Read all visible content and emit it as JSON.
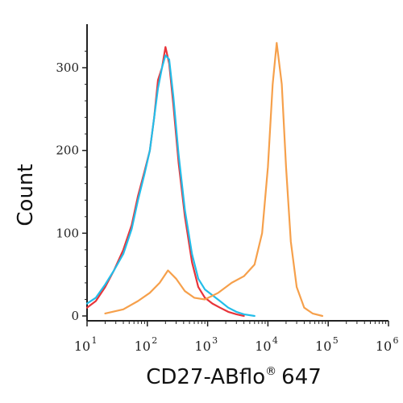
{
  "chart_data": {
    "type": "line",
    "xlabel": "CD27-ABflo",
    "xlabel_suffix": "647",
    "xlabel_superscript": "®",
    "ylabel": "Count",
    "x_scale": "log",
    "xlim": [
      10,
      1000000
    ],
    "ylim": [
      0,
      330
    ],
    "yticks": [
      {
        "value": 0,
        "label": "0"
      },
      {
        "value": 100,
        "label": "100"
      },
      {
        "value": 200,
        "label": "200"
      },
      {
        "value": 300,
        "label": "300"
      }
    ],
    "xticks": [
      {
        "value": 10,
        "base": "10",
        "exp": "1"
      },
      {
        "value": 100,
        "base": "10",
        "exp": "2"
      },
      {
        "value": 1000,
        "base": "10",
        "exp": "3"
      },
      {
        "value": 10000,
        "base": "10",
        "exp": "4"
      },
      {
        "value": 100000,
        "base": "10",
        "exp": "5"
      },
      {
        "value": 1000000,
        "base": "10",
        "exp": "6"
      }
    ],
    "grid": false,
    "series": [
      {
        "color": "#e8343a",
        "points": [
          [
            10,
            10
          ],
          [
            14,
            18
          ],
          [
            20,
            35
          ],
          [
            28,
            55
          ],
          [
            40,
            80
          ],
          [
            55,
            110
          ],
          [
            70,
            145
          ],
          [
            90,
            175
          ],
          [
            110,
            200
          ],
          [
            130,
            240
          ],
          [
            150,
            285
          ],
          [
            175,
            300
          ],
          [
            200,
            325
          ],
          [
            230,
            305
          ],
          [
            270,
            255
          ],
          [
            330,
            185
          ],
          [
            420,
            120
          ],
          [
            550,
            65
          ],
          [
            700,
            35
          ],
          [
            900,
            22
          ],
          [
            1200,
            15
          ],
          [
            1600,
            10
          ],
          [
            2200,
            5
          ],
          [
            3000,
            2
          ],
          [
            4000,
            0
          ]
        ]
      },
      {
        "color": "#23bde9",
        "points": [
          [
            10,
            15
          ],
          [
            14,
            22
          ],
          [
            20,
            38
          ],
          [
            28,
            55
          ],
          [
            40,
            75
          ],
          [
            55,
            105
          ],
          [
            70,
            140
          ],
          [
            90,
            172
          ],
          [
            110,
            200
          ],
          [
            130,
            240
          ],
          [
            150,
            275
          ],
          [
            175,
            300
          ],
          [
            200,
            315
          ],
          [
            230,
            310
          ],
          [
            270,
            265
          ],
          [
            330,
            195
          ],
          [
            420,
            128
          ],
          [
            550,
            75
          ],
          [
            700,
            45
          ],
          [
            900,
            32
          ],
          [
            1200,
            25
          ],
          [
            1600,
            18
          ],
          [
            2200,
            10
          ],
          [
            3000,
            5
          ],
          [
            4000,
            2
          ],
          [
            6000,
            0
          ]
        ]
      },
      {
        "color": "#f6a04b",
        "points": [
          [
            20,
            3
          ],
          [
            40,
            8
          ],
          [
            70,
            18
          ],
          [
            110,
            28
          ],
          [
            160,
            40
          ],
          [
            220,
            55
          ],
          [
            300,
            45
          ],
          [
            420,
            30
          ],
          [
            600,
            22
          ],
          [
            900,
            20
          ],
          [
            1500,
            28
          ],
          [
            2500,
            40
          ],
          [
            4000,
            48
          ],
          [
            6000,
            62
          ],
          [
            8000,
            100
          ],
          [
            10000,
            180
          ],
          [
            12000,
            280
          ],
          [
            14000,
            330
          ],
          [
            17000,
            280
          ],
          [
            20000,
            180
          ],
          [
            24000,
            90
          ],
          [
            30000,
            35
          ],
          [
            40000,
            10
          ],
          [
            55000,
            3
          ],
          [
            80000,
            0
          ]
        ]
      }
    ]
  }
}
